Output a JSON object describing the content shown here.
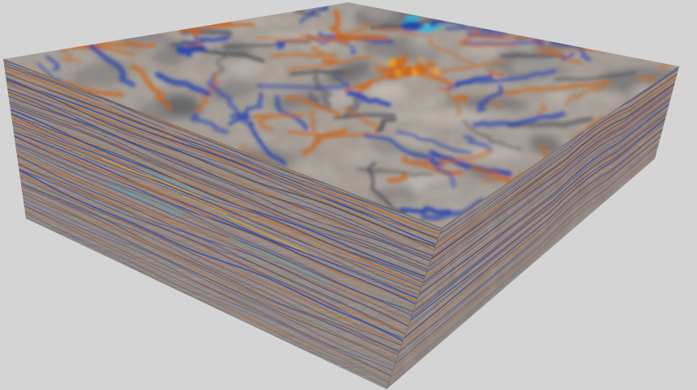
{
  "scene": {
    "subject": "seismic-volume-cube",
    "background_color": "#d4d4d4",
    "faces": [
      {
        "name": "top-face",
        "type": "time-slice"
      },
      {
        "name": "left-face",
        "type": "inline-section"
      },
      {
        "name": "right-face",
        "type": "crossline-section"
      }
    ],
    "colormap": {
      "positive_color": "#c8651e",
      "positive_strong_color": "#f0a21c",
      "negative_color": "#1e3fb0",
      "negative_strong_color": "#2fb8d8",
      "neutral_color": "#9a918a",
      "dark_color": "#4d4f58"
    },
    "shading": {
      "top_face_tint": "#a49b93",
      "side_face_tint": "#8d857e",
      "right_face_tint": "#8f8780"
    }
  }
}
